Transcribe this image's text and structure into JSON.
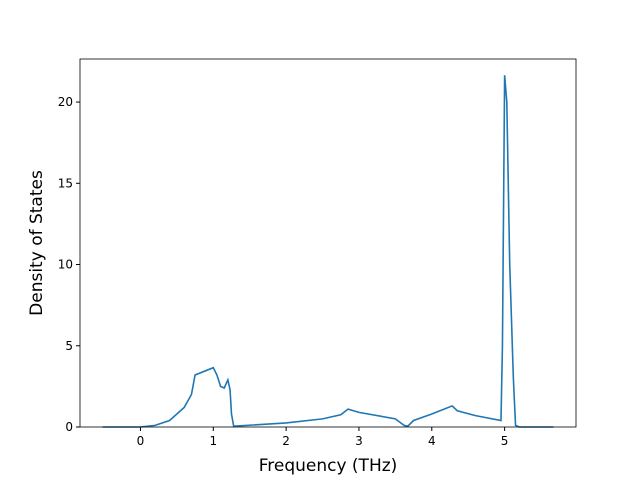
{
  "chart_data": {
    "type": "line",
    "xlabel": "Frequency (THz)",
    "ylabel": "Density of States",
    "x": [
      -0.52,
      0,
      0.2,
      0.4,
      0.6,
      0.7,
      0.75,
      1.0,
      1.05,
      1.1,
      1.15,
      1.2,
      1.23,
      1.25,
      1.28,
      2.0,
      2.5,
      2.75,
      2.85,
      3.0,
      3.5,
      3.62,
      3.67,
      3.75,
      4.0,
      4.28,
      4.35,
      4.6,
      4.95,
      4.97,
      5.0,
      5.03,
      5.07,
      5.12,
      5.15,
      5.2,
      5.67
    ],
    "series": [
      {
        "color": "#1f77b4",
        "values": [
          0,
          0,
          0.1,
          0.4,
          1.2,
          2.0,
          3.2,
          3.65,
          3.2,
          2.5,
          2.4,
          2.9,
          2.3,
          0.8,
          0.05,
          0.25,
          0.5,
          0.75,
          1.1,
          0.9,
          0.5,
          0.1,
          0.05,
          0.4,
          0.8,
          1.3,
          1.0,
          0.7,
          0.4,
          5,
          21.65,
          20,
          10,
          3,
          0.1,
          0,
          0
        ]
      }
    ],
    "xlim": [
      -0.83,
      5.98
    ],
    "xticks": [
      0,
      1,
      2,
      3,
      4,
      5
    ],
    "ylim": [
      0,
      22.65
    ],
    "yticks": [
      0,
      5,
      10,
      15,
      20
    ]
  }
}
